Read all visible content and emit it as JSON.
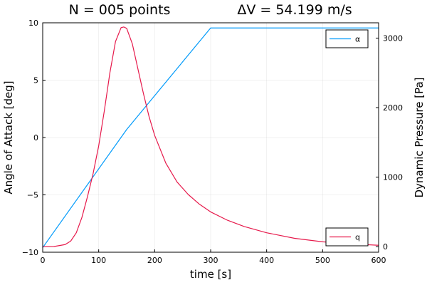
{
  "chart_data": {
    "type": "line",
    "title_left": "N = 005 points",
    "title_right": "ΔV = 54.199 m/s",
    "xlabel": "time [s]",
    "ylabel_left": "Angle of Attack [deg]",
    "ylabel_right": "Dynamic Pressure [Pa]",
    "xlim": [
      0,
      600
    ],
    "ylim_left": [
      -10,
      10
    ],
    "ylim_right": [
      -80,
      3220
    ],
    "x_ticks": [
      0,
      100,
      200,
      300,
      400,
      500,
      600
    ],
    "x_tick_labels": [
      "0",
      "100",
      "200",
      "300",
      "400",
      "500",
      "600"
    ],
    "y_left_ticks": [
      -10,
      -5,
      0,
      5,
      10
    ],
    "y_left_tick_labels": [
      "−10",
      "−5",
      "0",
      "5",
      "10"
    ],
    "y_right_ticks": [
      0,
      1000,
      2000,
      3000
    ],
    "y_right_tick_labels": [
      "0",
      "1000",
      "2000",
      "3000"
    ],
    "grid": true,
    "series": [
      {
        "name": "α",
        "axis": "left",
        "color": "#009AFA",
        "legend_position": "top-right",
        "x": [
          0,
          150,
          300,
          450,
          600
        ],
        "y": [
          -9.6,
          0.7,
          9.55,
          9.55,
          9.55
        ]
      },
      {
        "name": "q",
        "axis": "right",
        "color": "#E6194B",
        "legend_position": "bottom-right",
        "x": [
          0,
          20,
          40,
          50,
          60,
          70,
          80,
          90,
          100,
          110,
          120,
          130,
          140,
          145,
          150,
          160,
          170,
          180,
          190,
          200,
          220,
          240,
          260,
          280,
          300,
          330,
          360,
          400,
          450,
          500,
          550,
          600
        ],
        "y": [
          0,
          2,
          30,
          80,
          200,
          420,
          720,
          1050,
          1450,
          1950,
          2500,
          2950,
          3150,
          3160,
          3140,
          2920,
          2560,
          2200,
          1870,
          1600,
          1200,
          930,
          750,
          610,
          500,
          380,
          290,
          200,
          120,
          70,
          40,
          20
        ]
      }
    ]
  }
}
